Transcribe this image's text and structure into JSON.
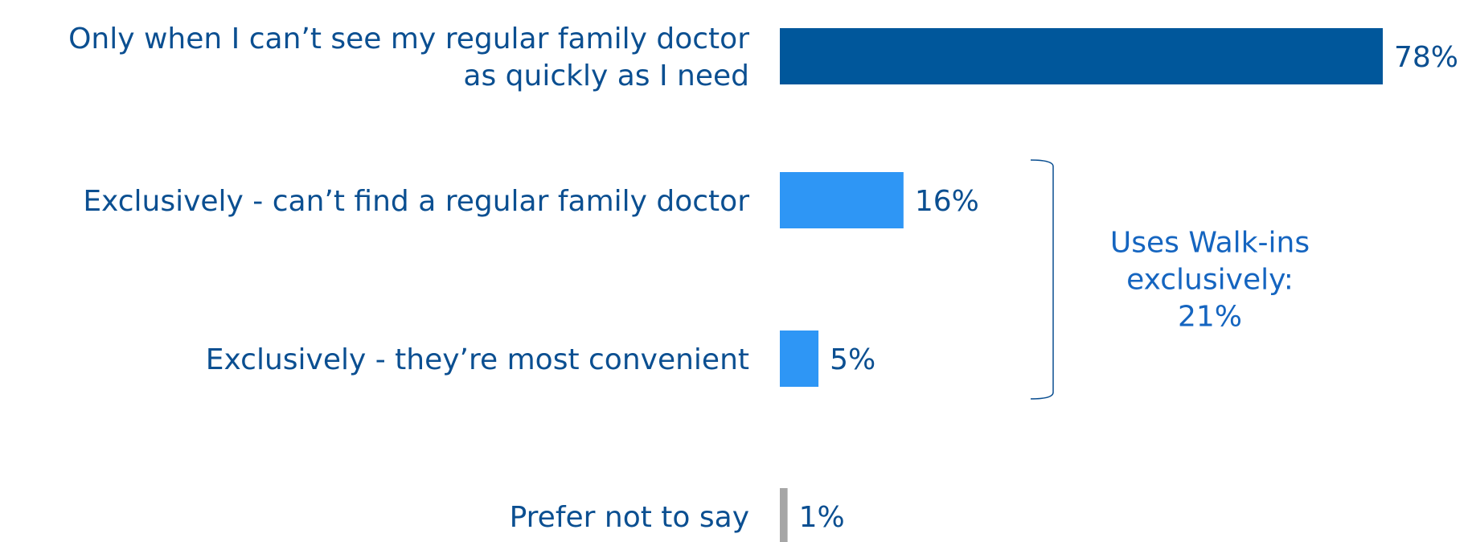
{
  "chart_data": {
    "type": "bar",
    "orientation": "horizontal",
    "categories": [
      [
        "Only when I can’t see my regular family doctor",
        "as quickly as I need"
      ],
      [
        "Exclusively - can’t find a regular family doctor"
      ],
      [
        "Exclusively - they’re most convenient"
      ],
      [
        "Prefer not to say"
      ]
    ],
    "values": [
      78,
      16,
      5,
      1
    ],
    "value_labels": [
      "78%",
      "16%",
      "5%",
      "1%"
    ],
    "unit": "%",
    "xlim": [
      0,
      78
    ],
    "grid": false,
    "colors": [
      "#00579b",
      "#2e96f5",
      "#2e96f5",
      "#a6a6a6"
    ],
    "annotation": {
      "lines": [
        "Uses Walk-ins",
        "exclusively:",
        "21%"
      ],
      "applies_to": [
        1,
        2
      ],
      "color": "#1565c0"
    }
  }
}
